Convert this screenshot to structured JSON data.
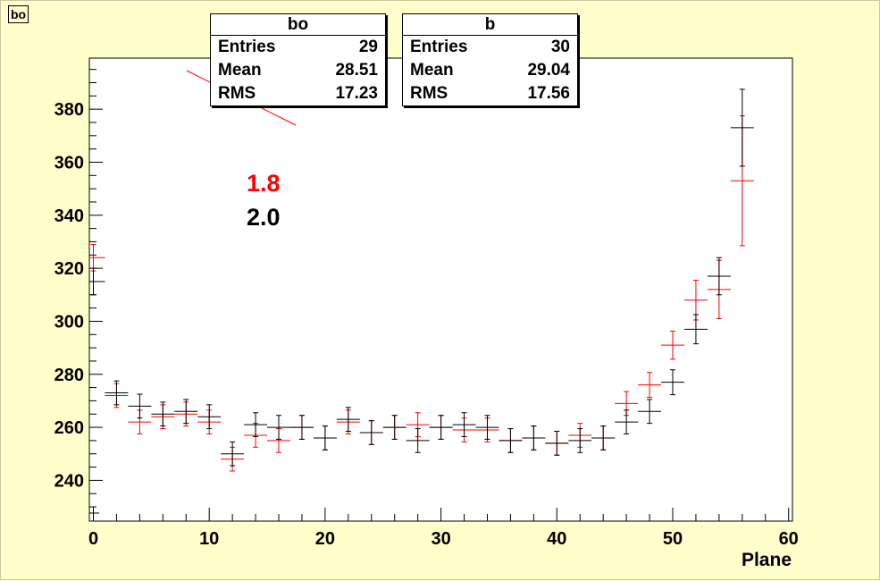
{
  "title_box": "bo",
  "stats_boxes": [
    {
      "name": "bo",
      "rows": [
        {
          "label": "Entries",
          "value": "29"
        },
        {
          "label": "Mean",
          "value": "28.51"
        },
        {
          "label": "RMS",
          "value": "17.23"
        }
      ]
    },
    {
      "name": "b",
      "rows": [
        {
          "label": "Entries",
          "value": "30"
        },
        {
          "label": "Mean",
          "value": "29.04"
        },
        {
          "label": "RMS",
          "value": "17.56"
        }
      ]
    }
  ],
  "legend_labels": [
    {
      "text": "1.8",
      "color": "#ff0000"
    },
    {
      "text": "2.0",
      "color": "#000000"
    }
  ],
  "chart_data": {
    "type": "scatter",
    "xlabel": "Plane",
    "ylabel": "",
    "xlim": [
      0,
      60
    ],
    "ylim": [
      223,
      398
    ],
    "xticks": [
      0,
      10,
      20,
      30,
      40,
      50,
      60
    ],
    "yticks": [
      240,
      260,
      280,
      300,
      320,
      340,
      360,
      380
    ],
    "grid": false,
    "colors": {
      "red_series": "#ff0000",
      "black_series": "#000000",
      "frame_bg": "#ffffcc",
      "plot_bg": "#ffffff"
    },
    "series": [
      {
        "color": "#ff0000",
        "x": [
          0,
          2,
          4,
          6,
          8,
          10,
          12,
          14,
          16,
          18,
          20,
          22,
          24,
          26,
          28,
          30,
          32,
          34,
          36,
          38,
          40,
          42,
          44,
          46,
          48,
          50,
          52,
          54,
          56
        ],
        "y": [
          324,
          272,
          262,
          264,
          265,
          262,
          248,
          257,
          255,
          260,
          256,
          262,
          258,
          260,
          261,
          260,
          259,
          259,
          255,
          256,
          254,
          257,
          256,
          269,
          276,
          291,
          308,
          312,
          353
        ],
        "yerr": [
          5,
          4.5,
          4.5,
          4.5,
          4.5,
          4.5,
          4.5,
          4.5,
          4.5,
          4.5,
          4.5,
          4.5,
          4.5,
          4.5,
          4.5,
          4.5,
          4.5,
          4.5,
          4.5,
          4.5,
          4.5,
          4.5,
          4.5,
          4.5,
          4.7,
          5.3,
          7.5,
          11,
          24.5
        ]
      },
      {
        "color": "#000000",
        "x": [
          0,
          2,
          4,
          6,
          8,
          10,
          12,
          14,
          16,
          18,
          20,
          22,
          24,
          26,
          28,
          30,
          32,
          34,
          36,
          38,
          40,
          42,
          44,
          46,
          48,
          50,
          52,
          54,
          56
        ],
        "y": [
          315,
          273,
          268,
          265,
          266,
          264,
          250,
          261,
          260,
          260,
          256,
          263,
          258,
          260,
          255,
          260,
          261,
          260,
          255,
          256,
          254,
          255,
          256,
          262,
          266,
          277,
          297,
          317,
          373
        ],
        "yerr": [
          5,
          4.5,
          4.5,
          4.5,
          4.5,
          4.5,
          4.5,
          4.5,
          4.5,
          4.5,
          4.5,
          4.5,
          4.5,
          4.5,
          4.5,
          4.5,
          4.5,
          4.5,
          4.5,
          4.5,
          4.5,
          4.5,
          4.5,
          4.5,
          4.5,
          4.7,
          5.5,
          7,
          14.5
        ]
      }
    ]
  }
}
